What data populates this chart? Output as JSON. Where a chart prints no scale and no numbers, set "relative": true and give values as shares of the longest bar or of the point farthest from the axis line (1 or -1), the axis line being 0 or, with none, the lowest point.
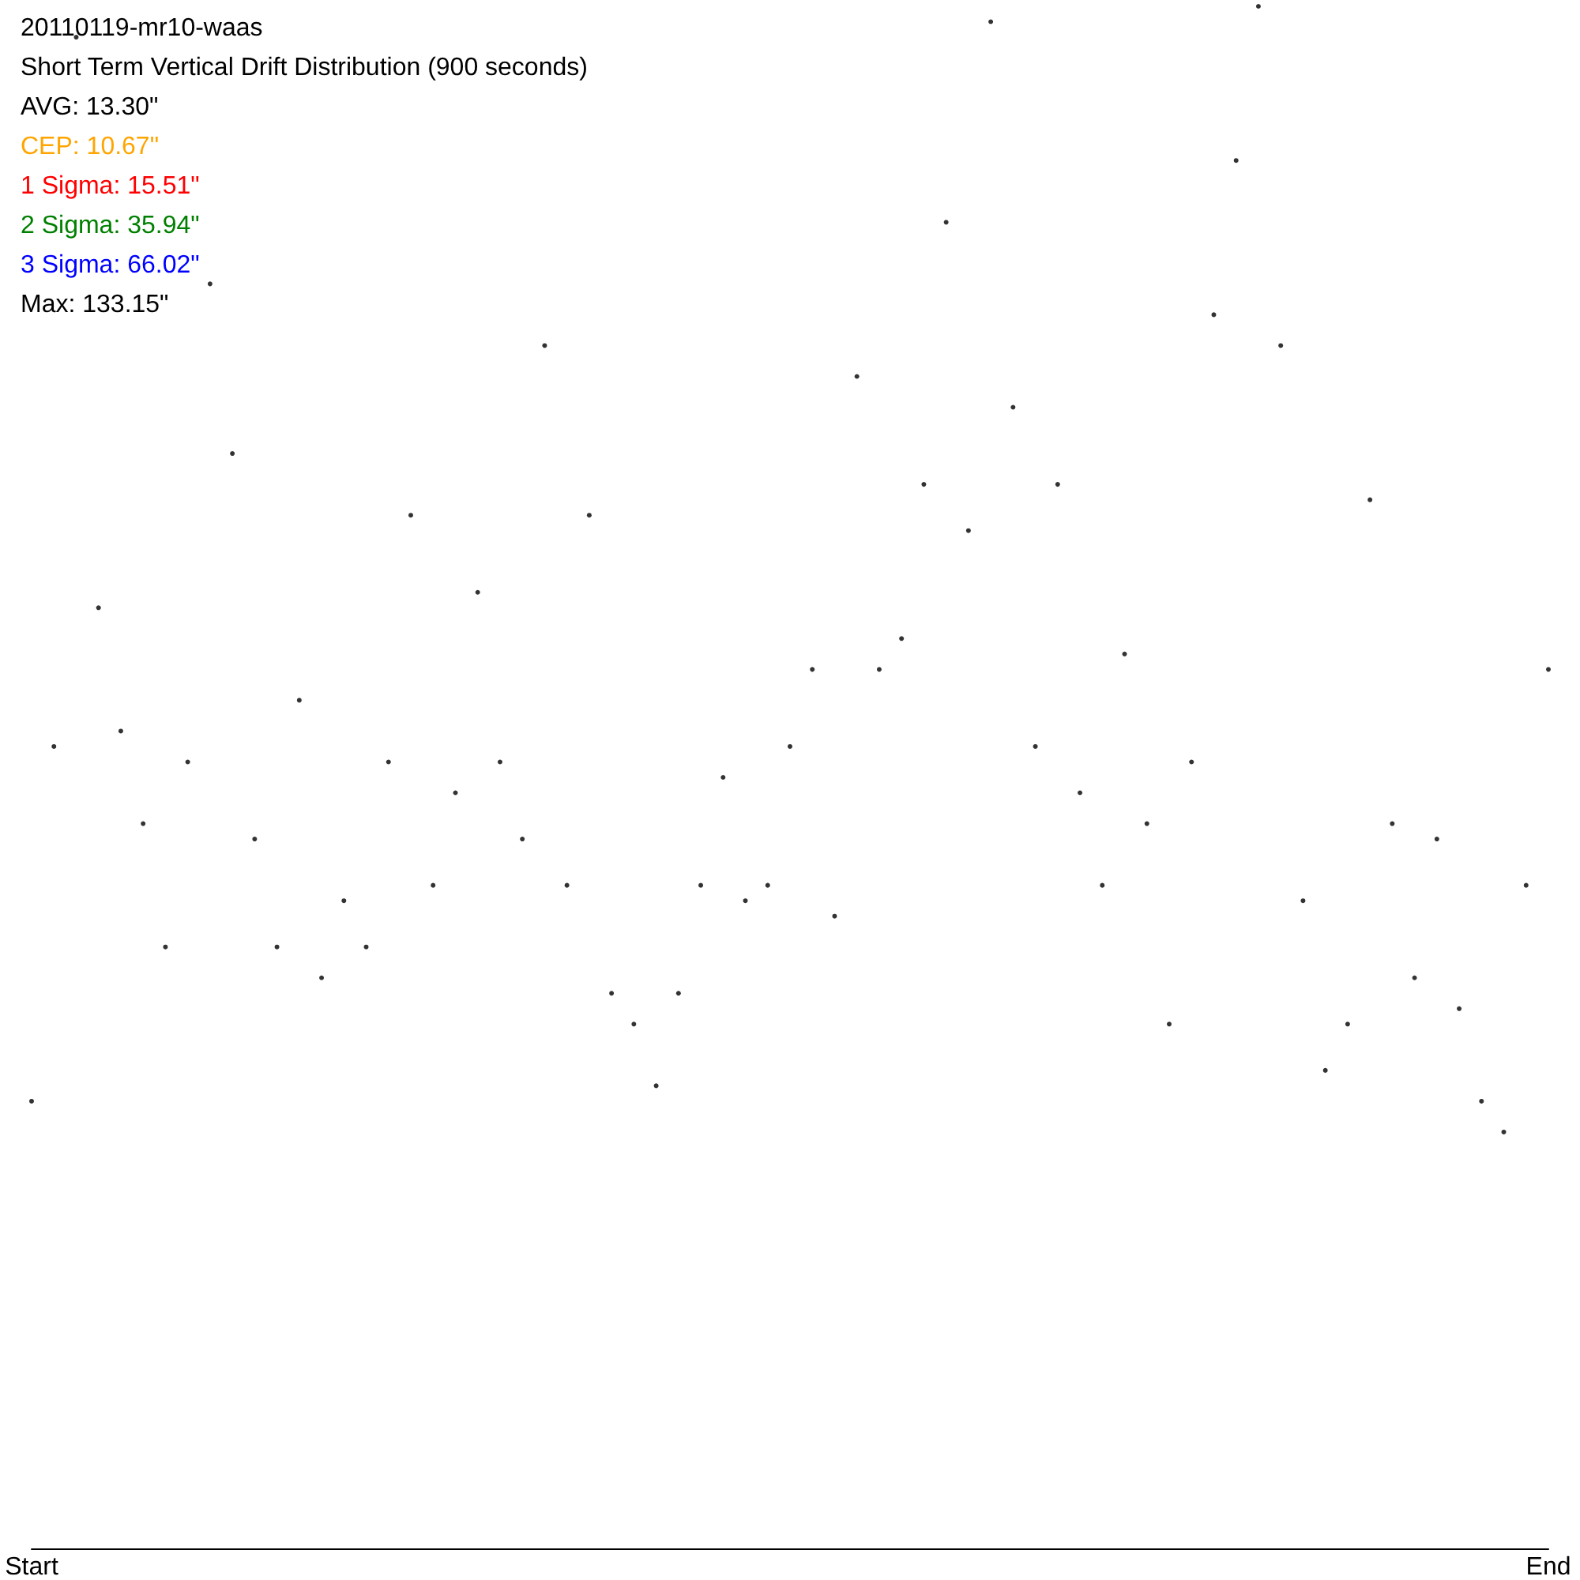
{
  "chart_data": {
    "type": "scatter",
    "title": "20110119-mr10-waas",
    "subtitle": "Short Term Vertical Drift Distribution (900 seconds)",
    "annotations": [
      "AVG: 13.30\"",
      "CEP: 10.67\"",
      "1 Sigma: 15.51\"",
      "2 Sigma: 35.94\"",
      "3 Sigma: 66.02\"",
      "Max: 133.15\""
    ],
    "relative": true,
    "grid": false,
    "marker": "circle",
    "categories": [
      "Start",
      null,
      null,
      null,
      null,
      null,
      null,
      null,
      null,
      null,
      null,
      null,
      null,
      null,
      null,
      null,
      null,
      null,
      null,
      null,
      null,
      null,
      null,
      null,
      null,
      null,
      null,
      null,
      null,
      null,
      null,
      null,
      null,
      null,
      null,
      null,
      null,
      null,
      null,
      null,
      null,
      null,
      null,
      null,
      null,
      null,
      null,
      null,
      null,
      null,
      null,
      null,
      null,
      null,
      null,
      null,
      null,
      null,
      null,
      null,
      null,
      null,
      null,
      null,
      null,
      null,
      null,
      null,
      "End"
    ],
    "series": [
      {
        "color": "#000000",
        "values": [
          0.29,
          0.52,
          0.98,
          0.61,
          0.53,
          0.47,
          0.39,
          0.51,
          0.82,
          0.71,
          0.46,
          0.39,
          0.55,
          0.37,
          0.42,
          0.39,
          0.51,
          0.67,
          0.43,
          0.49,
          0.62,
          0.51,
          0.46,
          0.78,
          0.43,
          0.67,
          0.36,
          0.34,
          0.3,
          0.36,
          0.43,
          0.5,
          0.42,
          0.43,
          0.52,
          0.57,
          0.41,
          0.76,
          0.57,
          0.59,
          0.69,
          0.86,
          0.66,
          0.99,
          0.74,
          0.52,
          0.69,
          0.49,
          0.43,
          0.58,
          0.47,
          0.34,
          0.51,
          0.8,
          0.9,
          1,
          0.78,
          0.42,
          0.31,
          0.34,
          0.68,
          0.47,
          0.37,
          0.46,
          0.35,
          0.29,
          0.27,
          0.43,
          0.57
        ]
      }
    ]
  }
}
